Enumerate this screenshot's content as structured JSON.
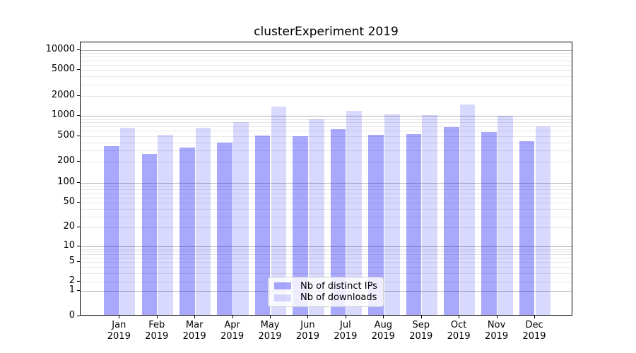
{
  "chart_data": {
    "type": "bar",
    "title": "clusterExperiment 2019",
    "categories": [
      "Jan",
      "Feb",
      "Mar",
      "Apr",
      "May",
      "Jun",
      "Jul",
      "Aug",
      "Sep",
      "Oct",
      "Nov",
      "Dec"
    ],
    "category_year": "2019",
    "series": [
      {
        "name": "Nb of distinct IPs",
        "color": "rgba(0,0,247,0.34)",
        "values": [
          330,
          250,
          320,
          375,
          480,
          470,
          610,
          500,
          505,
          655,
          545,
          400
        ]
      },
      {
        "name": "Nb of downloads",
        "color": "rgba(0,0,247,0.15)",
        "values": [
          640,
          500,
          630,
          770,
          1315,
          855,
          1145,
          1015,
          975,
          1415,
          965,
          660
        ]
      }
    ],
    "yscale": "symlog",
    "ylim": [
      0,
      13000
    ],
    "y_ticks": [
      0,
      1,
      2,
      5,
      10,
      20,
      50,
      100,
      200,
      500,
      1000,
      2000,
      5000,
      10000
    ],
    "grid": "both",
    "legend_position": "lower center",
    "xlabel": "",
    "ylabel": ""
  },
  "colors": {
    "grid_major": "#b0b0b0",
    "grid_minor": "#e7e7e7",
    "spine": "#000000",
    "background": "#ffffff",
    "legend_border": "#cccccc"
  }
}
